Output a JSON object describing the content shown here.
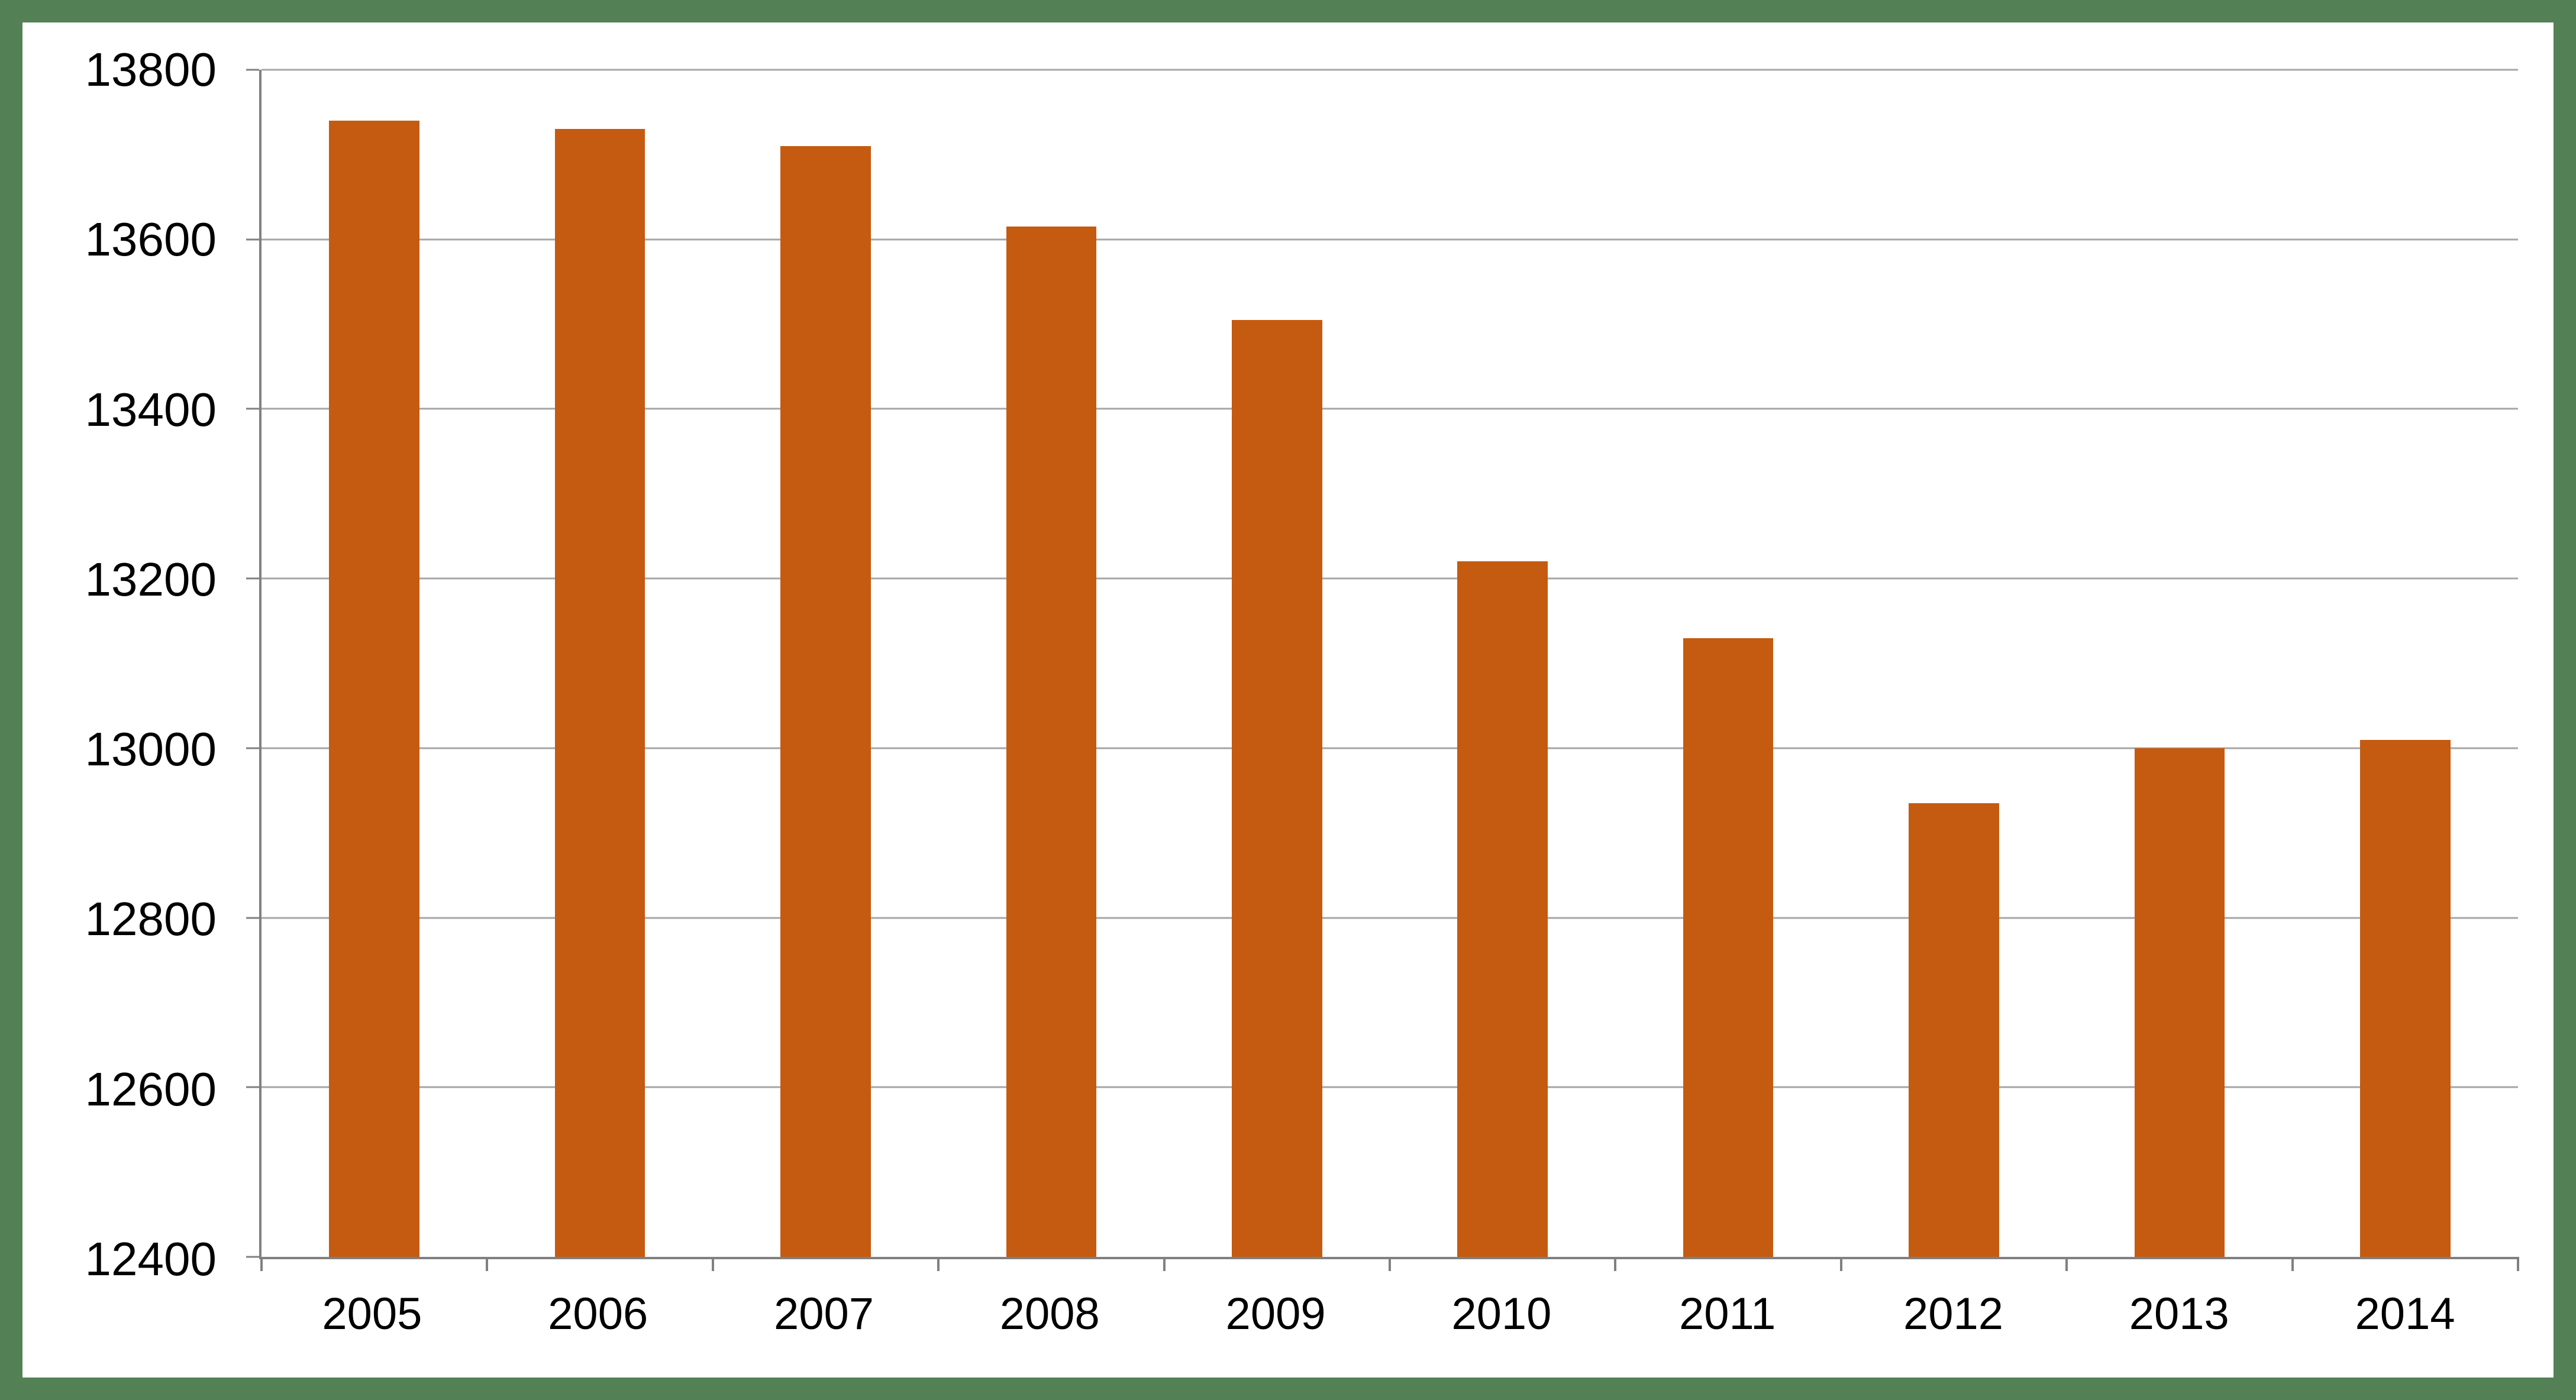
{
  "chart_data": {
    "type": "bar",
    "categories": [
      "2005",
      "2006",
      "2007",
      "2008",
      "2009",
      "2010",
      "2011",
      "2012",
      "2013",
      "2014"
    ],
    "values": [
      13740,
      13730,
      13710,
      13615,
      13505,
      13220,
      13130,
      12935,
      13000,
      13010
    ],
    "title": "",
    "xlabel": "",
    "ylabel": "",
    "ylim": [
      12400,
      13800
    ],
    "ytick_step": 200,
    "yticks": [
      "12400",
      "12600",
      "12800",
      "13000",
      "13200",
      "13400",
      "13600",
      "13800"
    ],
    "grid": "horizontal-major",
    "legend": "none",
    "colors": {
      "bar": "#C55A11",
      "frame_border": "#538055",
      "axis": "#808080",
      "gridline": "#A6A6A6",
      "background": "#FFFFFF",
      "text": "#000000"
    }
  }
}
